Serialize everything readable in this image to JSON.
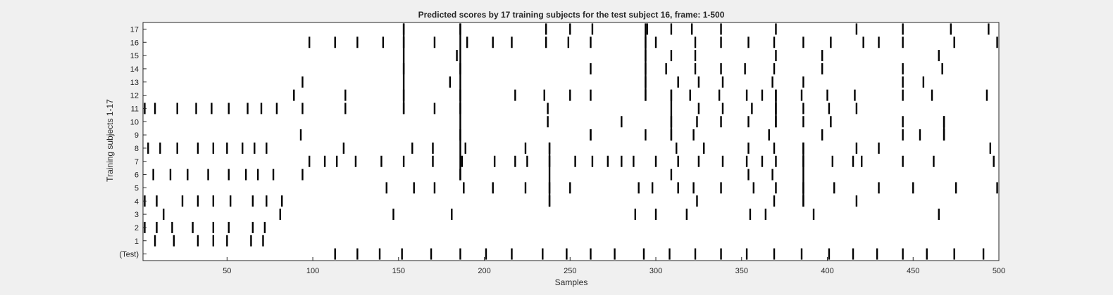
{
  "chart_data": {
    "type": "raster",
    "title": "Predicted scores by 17 training subjects for the test subject 16, frame: 1-500",
    "xlabel": "Samples",
    "ylabel": "Training subjects 1-17",
    "xlim": [
      1,
      500
    ],
    "xticks": [
      50,
      100,
      150,
      200,
      250,
      300,
      350,
      400,
      450,
      500
    ],
    "row_labels": [
      "(Test)",
      "1",
      "2",
      "3",
      "4",
      "5",
      "6",
      "7",
      "8",
      "9",
      "10",
      "11",
      "12",
      "13",
      "14",
      "15",
      "16",
      "17"
    ],
    "series": [
      {
        "label": "(Test)",
        "x": [
          113,
          126,
          139,
          152,
          169,
          186,
          201,
          216,
          234,
          248,
          262,
          276,
          293,
          308,
          323,
          338,
          353,
          369,
          385,
          401,
          415,
          429,
          444,
          458,
          474,
          491
        ]
      },
      {
        "label": "1",
        "x": [
          8,
          19,
          33,
          42,
          50,
          64,
          71
        ]
      },
      {
        "label": "2",
        "x": [
          2,
          9,
          18,
          30,
          42,
          51,
          65,
          72
        ]
      },
      {
        "label": "3",
        "x": [
          13,
          81,
          147,
          181,
          288,
          300,
          318,
          355,
          364,
          392,
          465
        ]
      },
      {
        "label": "4",
        "x": [
          2,
          9,
          24,
          33,
          42,
          52,
          65,
          73,
          82,
          238,
          324,
          369,
          386,
          417
        ]
      },
      {
        "label": "5",
        "x": [
          143,
          159,
          171,
          188,
          205,
          224,
          238,
          250,
          290,
          298,
          313,
          322,
          338,
          357,
          370,
          386,
          404,
          430,
          450,
          475,
          499
        ]
      },
      {
        "label": "6",
        "x": [
          7,
          17,
          27,
          39,
          51,
          61,
          68,
          77,
          94,
          186,
          309,
          354,
          368
        ]
      },
      {
        "label": "7",
        "x": [
          98,
          107,
          114,
          125,
          140,
          153,
          170,
          187,
          206,
          218,
          225,
          238,
          253,
          263,
          272,
          280,
          287,
          300,
          313,
          325,
          339,
          353,
          362,
          370,
          386,
          403,
          415,
          420,
          444,
          462,
          497
        ]
      },
      {
        "label": "8",
        "x": [
          4,
          11,
          21,
          33,
          42,
          50,
          59,
          66,
          73,
          118,
          158,
          170,
          189,
          224,
          238,
          312,
          328,
          354,
          369,
          386,
          417,
          430,
          495
        ]
      },
      {
        "label": "9",
        "x": [
          93,
          186,
          262,
          294,
          309,
          322,
          366,
          397,
          444,
          454,
          468
        ]
      },
      {
        "label": "10",
        "x": [
          237,
          280,
          309,
          324,
          338,
          354,
          370,
          386,
          402,
          444,
          468
        ]
      },
      {
        "label": "11",
        "x": [
          2,
          8,
          21,
          32,
          41,
          51,
          62,
          70,
          79,
          94,
          119,
          153,
          171,
          186,
          237,
          325,
          339,
          356,
          370,
          386,
          401,
          417
        ]
      },
      {
        "label": "12",
        "x": [
          89,
          119,
          153,
          186,
          218,
          235,
          250,
          262,
          294,
          309,
          320,
          337,
          353,
          362,
          370,
          385,
          400,
          416,
          444,
          461,
          493
        ]
      },
      {
        "label": "13",
        "x": [
          94,
          180,
          294,
          313,
          325,
          339,
          368,
          386,
          444,
          456
        ]
      },
      {
        "label": "14",
        "x": [
          153,
          186,
          262,
          294,
          306,
          323,
          338,
          352,
          369,
          397,
          444,
          467
        ]
      },
      {
        "label": "15",
        "x": [
          184,
          294,
          309,
          323,
          370,
          397,
          465
        ]
      },
      {
        "label": "16",
        "x": [
          98,
          113,
          126,
          141,
          153,
          171,
          190,
          205,
          216,
          236,
          249,
          262,
          294,
          300,
          323,
          338,
          354,
          369,
          386,
          402,
          421,
          430,
          444,
          474,
          499
        ]
      },
      {
        "label": "17",
        "x": [
          153,
          186,
          236,
          250,
          263,
          295,
          309,
          321,
          338,
          370,
          417,
          444,
          472,
          494
        ]
      }
    ],
    "long_ticks": [
      {
        "x": 153,
        "rows": [
          11,
          17
        ]
      },
      {
        "x": 186,
        "rows": [
          6,
          17
        ]
      },
      {
        "x": 238,
        "rows": [
          4,
          8
        ]
      },
      {
        "x": 294,
        "rows": [
          12,
          17
        ]
      },
      {
        "x": 309,
        "rows": [
          9,
          12
        ]
      },
      {
        "x": 386,
        "rows": [
          4,
          8
        ]
      },
      {
        "x": 370,
        "rows": [
          10,
          12
        ]
      },
      {
        "x": 468,
        "rows": [
          9,
          10
        ]
      },
      {
        "x": 262,
        "rows": [
          9,
          9
        ]
      }
    ],
    "colors": {
      "mark": "#000000",
      "axes_bg": "#ffffff",
      "figure_bg": "#f0f0f0"
    }
  }
}
